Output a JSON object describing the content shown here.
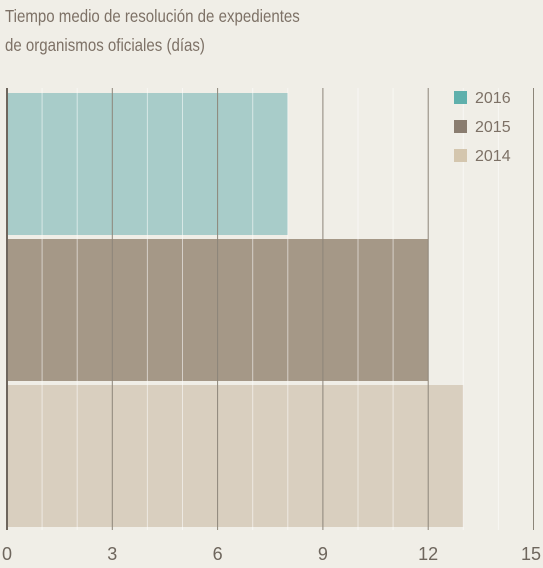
{
  "title_lines": [
    "Tiempo medio de resolución de expedientes",
    "de organismos oficiales (días)"
  ],
  "chart_data": {
    "type": "bar",
    "orientation": "horizontal",
    "title": "Tiempo medio de resolución de expedientes de organismos oficiales (días)",
    "categories": [
      "2016",
      "2015",
      "2014"
    ],
    "values": [
      8,
      12,
      13
    ],
    "colors": [
      "#a8ccc9",
      "#a59887",
      "#d9cfbf"
    ],
    "legend_swatch_colors": [
      "#5fb0ac",
      "#8a7d70",
      "#d4c6ae"
    ],
    "xlim": [
      0,
      15
    ],
    "xticks": [
      "0",
      "3",
      "6",
      "9",
      "12",
      "15"
    ],
    "grid": true,
    "legend": "top-right",
    "colors_meta": {
      "background": "#f0eee7",
      "gridline_major": "#8c8579",
      "gridline_minor": "#ffffff",
      "axis": "#6e665d",
      "text": "#7d7166",
      "tick_text": "#6e665d"
    }
  }
}
